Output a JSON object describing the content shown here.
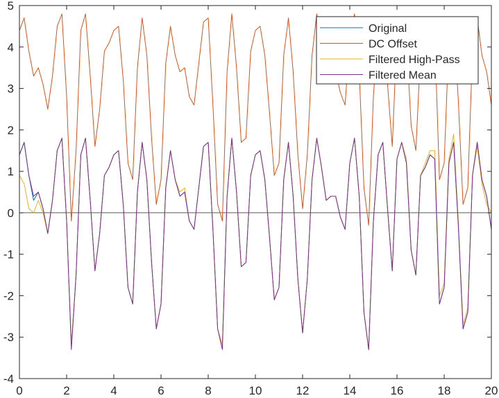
{
  "chart_data": {
    "type": "line",
    "title": "",
    "xlabel": "",
    "ylabel": "",
    "xlim": [
      0,
      20
    ],
    "ylim": [
      -4,
      5
    ],
    "xticks": [
      0,
      2,
      4,
      6,
      8,
      10,
      12,
      14,
      16,
      18,
      20
    ],
    "yticks": [
      -4,
      -3,
      -2,
      -1,
      0,
      1,
      2,
      3,
      4,
      5
    ],
    "xtick_labels": [
      "0",
      "2",
      "4",
      "6",
      "8",
      "10",
      "12",
      "14",
      "16",
      "18",
      "20"
    ],
    "ytick_labels": [
      "-4",
      "-3",
      "-2",
      "-1",
      "0",
      "1",
      "2",
      "3",
      "4",
      "5"
    ],
    "grid": false,
    "zero_line": true,
    "legend_position": "top-right",
    "series": [
      {
        "name": "Original",
        "color": "#0072BD",
        "x": [
          0,
          0.2,
          0.4,
          0.6,
          0.8,
          1.0,
          1.2,
          1.4,
          1.6,
          1.8,
          2.0,
          2.2,
          2.4,
          2.6,
          2.8,
          3.0,
          3.2,
          3.4,
          3.6,
          3.8,
          4.0,
          4.2,
          4.4,
          4.6,
          4.8,
          5.0,
          5.2,
          5.4,
          5.6,
          5.8,
          6.0,
          6.2,
          6.4,
          6.6,
          6.8,
          7.0,
          7.2,
          7.4,
          7.6,
          7.8,
          8.0,
          8.2,
          8.4,
          8.6,
          8.8,
          9.0,
          9.2,
          9.4,
          9.6,
          9.8,
          10.0,
          10.2,
          10.4,
          10.6,
          10.8,
          11.0,
          11.2,
          11.4,
          11.6,
          11.8,
          12.0,
          12.2,
          12.4,
          12.6,
          12.8,
          13.0,
          13.2,
          13.4,
          13.6,
          13.8,
          14.0,
          14.2,
          14.4,
          14.6,
          14.8,
          15.0,
          15.2,
          15.4,
          15.6,
          15.8,
          16.0,
          16.2,
          16.4,
          16.6,
          16.8,
          17.0,
          17.2,
          17.4,
          17.6,
          17.8,
          18.0,
          18.2,
          18.4,
          18.6,
          18.8,
          19.0,
          19.2,
          19.4,
          19.6,
          19.8,
          20.0
        ],
        "y": [
          1.4,
          1.7,
          0.9,
          0.3,
          0.5,
          0.1,
          -0.5,
          0.3,
          1.5,
          1.8,
          -0.2,
          -3.2,
          -1.5,
          1.4,
          1.8,
          0.3,
          -1.4,
          -0.5,
          0.9,
          1.1,
          1.4,
          1.5,
          0.2,
          -1.8,
          -2.2,
          0.5,
          1.7,
          0.8,
          -1.2,
          -2.8,
          -2.2,
          0.6,
          1.5,
          0.8,
          0.4,
          0.5,
          -0.2,
          -0.4,
          0.6,
          1.6,
          1.7,
          -0.4,
          -2.8,
          -3.2,
          0.4,
          1.8,
          0.5,
          -1.3,
          -1.2,
          0.9,
          1.4,
          1.5,
          0.8,
          -0.6,
          -2.1,
          -1.8,
          0.8,
          1.7,
          0.4,
          -1.6,
          -2.9,
          -1.6,
          0.8,
          1.8,
          1.1,
          0.3,
          0.4,
          0.4,
          -0.1,
          -0.4,
          1.2,
          1.8,
          0.4,
          -2.4,
          -3.3,
          -0.2,
          1.4,
          1.7,
          0.1,
          -1.4,
          1.3,
          1.7,
          1.2,
          -0.9,
          -1.5,
          0.9,
          1.1,
          1.4,
          1.3,
          -2.2,
          -1.8,
          1.2,
          1.7,
          -0.3,
          -2.8,
          -2.4,
          0.9,
          1.7,
          0.8,
          0.4,
          -0.4
        ]
      },
      {
        "name": "DC Offset",
        "color": "#D95319",
        "x": [
          0,
          0.2,
          0.4,
          0.6,
          0.8,
          1.0,
          1.2,
          1.4,
          1.6,
          1.8,
          2.0,
          2.2,
          2.4,
          2.6,
          2.8,
          3.0,
          3.2,
          3.4,
          3.6,
          3.8,
          4.0,
          4.2,
          4.4,
          4.6,
          4.8,
          5.0,
          5.2,
          5.4,
          5.6,
          5.8,
          6.0,
          6.2,
          6.4,
          6.6,
          6.8,
          7.0,
          7.2,
          7.4,
          7.6,
          7.8,
          8.0,
          8.2,
          8.4,
          8.6,
          8.8,
          9.0,
          9.2,
          9.4,
          9.6,
          9.8,
          10.0,
          10.2,
          10.4,
          10.6,
          10.8,
          11.0,
          11.2,
          11.4,
          11.6,
          11.8,
          12.0,
          12.2,
          12.4,
          12.6,
          12.8,
          13.0,
          13.2,
          13.4,
          13.6,
          13.8,
          14.0,
          14.2,
          14.4,
          14.6,
          14.8,
          15.0,
          15.2,
          15.4,
          15.6,
          15.8,
          16.0,
          16.2,
          16.4,
          16.6,
          16.8,
          17.0,
          17.2,
          17.4,
          17.6,
          17.8,
          18.0,
          18.2,
          18.4,
          18.6,
          18.8,
          19.0,
          19.2,
          19.4,
          19.6,
          19.8,
          20.0
        ],
        "y": [
          4.4,
          4.7,
          3.9,
          3.3,
          3.5,
          3.1,
          2.5,
          3.3,
          4.5,
          4.8,
          2.8,
          -0.2,
          1.5,
          4.4,
          4.8,
          3.3,
          1.6,
          2.5,
          3.9,
          4.1,
          4.4,
          4.5,
          3.2,
          1.2,
          0.8,
          3.5,
          4.7,
          3.8,
          1.8,
          0.2,
          0.8,
          3.6,
          4.5,
          3.8,
          3.4,
          3.5,
          2.8,
          2.6,
          3.6,
          4.6,
          4.7,
          2.6,
          0.2,
          -0.2,
          3.4,
          4.8,
          3.5,
          1.7,
          1.8,
          3.9,
          4.4,
          4.5,
          3.8,
          2.4,
          0.9,
          1.2,
          3.8,
          4.7,
          3.4,
          1.4,
          0.1,
          1.4,
          3.8,
          4.8,
          4.1,
          3.3,
          3.4,
          3.4,
          2.9,
          2.6,
          4.2,
          4.8,
          3.4,
          0.6,
          -0.3,
          2.8,
          4.4,
          4.7,
          3.1,
          1.6,
          4.3,
          4.7,
          4.2,
          2.1,
          1.5,
          3.9,
          4.1,
          4.4,
          4.3,
          0.8,
          1.2,
          4.2,
          4.7,
          2.7,
          0.2,
          0.6,
          3.9,
          4.7,
          3.8,
          3.4,
          2.6
        ]
      },
      {
        "name": "Filtered High-Pass",
        "color": "#EDB120",
        "x": [
          0,
          0.2,
          0.4,
          0.6,
          0.8,
          1.0,
          1.2,
          1.4,
          1.6,
          1.8,
          2.0,
          2.2,
          2.4,
          2.6,
          2.8,
          3.0,
          3.2,
          3.4,
          3.6,
          3.8,
          4.0,
          4.2,
          4.4,
          4.6,
          4.8,
          5.0,
          5.2,
          5.4,
          5.6,
          5.8,
          6.0,
          6.2,
          6.4,
          6.6,
          6.8,
          7.0,
          7.2,
          7.4,
          7.6,
          7.8,
          8.0,
          8.2,
          8.4,
          8.6,
          8.8,
          9.0,
          9.2,
          9.4,
          9.6,
          9.8,
          10.0,
          10.2,
          10.4,
          10.6,
          10.8,
          11.0,
          11.2,
          11.4,
          11.6,
          11.8,
          12.0,
          12.2,
          12.4,
          12.6,
          12.8,
          13.0,
          13.2,
          13.4,
          13.6,
          13.8,
          14.0,
          14.2,
          14.4,
          14.6,
          14.8,
          15.0,
          15.2,
          15.4,
          15.6,
          15.8,
          16.0,
          16.2,
          16.4,
          16.6,
          16.8,
          17.0,
          17.2,
          17.4,
          17.6,
          17.8,
          18.0,
          18.2,
          18.4,
          18.6,
          18.8,
          19.0,
          19.2,
          19.4,
          19.6,
          19.8,
          20.0
        ],
        "y": [
          0.9,
          0.7,
          0.1,
          0.0,
          0.3,
          0.0,
          -0.5,
          0.3,
          1.5,
          1.8,
          -0.2,
          -3.2,
          -1.5,
          1.4,
          1.8,
          0.3,
          -1.4,
          -0.5,
          0.9,
          1.1,
          1.4,
          1.5,
          0.2,
          -1.8,
          -2.2,
          0.5,
          1.7,
          0.8,
          -1.2,
          -2.8,
          -2.2,
          0.6,
          1.5,
          0.8,
          0.5,
          0.6,
          -0.2,
          -0.4,
          0.6,
          1.6,
          1.7,
          -0.4,
          -2.8,
          -3.2,
          0.4,
          1.8,
          0.5,
          -1.3,
          -1.2,
          0.9,
          1.4,
          1.5,
          0.8,
          -0.6,
          -2.1,
          -1.8,
          0.8,
          1.7,
          0.4,
          -1.6,
          -2.9,
          -1.6,
          0.8,
          1.8,
          1.1,
          0.3,
          0.4,
          0.4,
          -0.1,
          -0.4,
          1.2,
          1.8,
          0.4,
          -2.4,
          -3.3,
          -0.2,
          1.4,
          1.7,
          0.1,
          -1.4,
          1.3,
          1.7,
          1.3,
          -0.9,
          -1.5,
          0.9,
          1.2,
          1.5,
          1.5,
          -2.0,
          -1.7,
          1.3,
          1.9,
          -0.2,
          -2.7,
          -2.3,
          0.9,
          1.6,
          0.7,
          0.2,
          0.0
        ]
      },
      {
        "name": "Filtered Mean",
        "color": "#7E2F8E",
        "x": [
          0,
          0.2,
          0.4,
          0.6,
          0.8,
          1.0,
          1.2,
          1.4,
          1.6,
          1.8,
          2.0,
          2.2,
          2.4,
          2.6,
          2.8,
          3.0,
          3.2,
          3.4,
          3.6,
          3.8,
          4.0,
          4.2,
          4.4,
          4.6,
          4.8,
          5.0,
          5.2,
          5.4,
          5.6,
          5.8,
          6.0,
          6.2,
          6.4,
          6.6,
          6.8,
          7.0,
          7.2,
          7.4,
          7.6,
          7.8,
          8.0,
          8.2,
          8.4,
          8.6,
          8.8,
          9.0,
          9.2,
          9.4,
          9.6,
          9.8,
          10.0,
          10.2,
          10.4,
          10.6,
          10.8,
          11.0,
          11.2,
          11.4,
          11.6,
          11.8,
          12.0,
          12.2,
          12.4,
          12.6,
          12.8,
          13.0,
          13.2,
          13.4,
          13.6,
          13.8,
          14.0,
          14.2,
          14.4,
          14.6,
          14.8,
          15.0,
          15.2,
          15.4,
          15.6,
          15.8,
          16.0,
          16.2,
          16.4,
          16.6,
          16.8,
          17.0,
          17.2,
          17.4,
          17.6,
          17.8,
          18.0,
          18.2,
          18.4,
          18.6,
          18.8,
          19.0,
          19.2,
          19.4,
          19.6,
          19.8,
          20.0
        ],
        "y": [
          1.4,
          1.7,
          0.9,
          0.4,
          0.5,
          0.1,
          -0.5,
          0.3,
          1.5,
          1.8,
          -0.2,
          -3.3,
          -1.5,
          1.4,
          1.8,
          0.3,
          -1.4,
          -0.5,
          0.9,
          1.1,
          1.4,
          1.5,
          0.2,
          -1.8,
          -2.2,
          0.5,
          1.7,
          0.8,
          -1.2,
          -2.8,
          -2.2,
          0.6,
          1.5,
          0.8,
          0.4,
          0.5,
          -0.2,
          -0.4,
          0.6,
          1.6,
          1.7,
          -0.4,
          -2.8,
          -3.3,
          0.4,
          1.8,
          0.5,
          -1.3,
          -1.2,
          0.9,
          1.4,
          1.5,
          0.8,
          -0.6,
          -2.1,
          -1.8,
          0.8,
          1.7,
          0.4,
          -1.6,
          -2.9,
          -1.6,
          0.8,
          1.8,
          1.1,
          0.3,
          0.4,
          0.4,
          -0.1,
          -0.4,
          1.2,
          1.8,
          0.4,
          -2.4,
          -3.3,
          -0.2,
          1.4,
          1.7,
          0.1,
          -1.4,
          1.3,
          1.7,
          1.2,
          -0.9,
          -1.5,
          0.9,
          1.1,
          1.4,
          1.3,
          -2.2,
          -1.8,
          1.2,
          1.7,
          -0.3,
          -2.8,
          -2.4,
          0.9,
          1.7,
          0.8,
          0.4,
          -0.4
        ]
      }
    ]
  }
}
